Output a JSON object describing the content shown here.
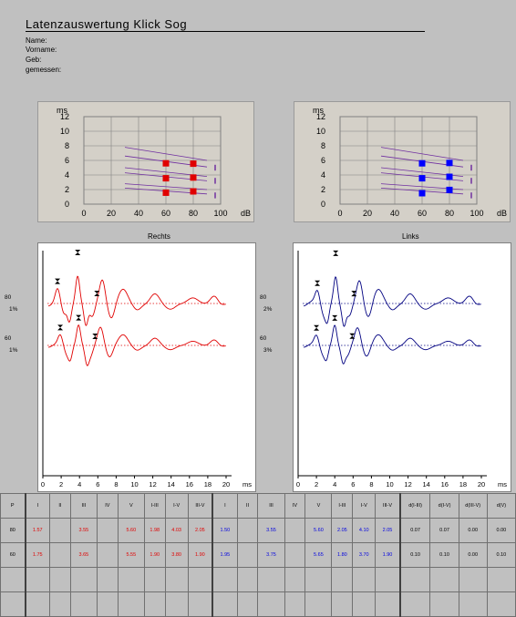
{
  "header": {
    "title": "Latenzauswertung Klick Sog",
    "fields": [
      "Name:",
      "Vorname:",
      "Geb:",
      "gemessen:"
    ]
  },
  "latency_plot": {
    "y_unit": "ms",
    "x_unit": "dB",
    "y_ticks": [
      "12",
      "10",
      "8",
      "6",
      "4",
      "2",
      "0"
    ],
    "x_ticks": [
      "0",
      "20",
      "40",
      "60",
      "80",
      "100"
    ]
  },
  "colors": {
    "right": "#e00000",
    "left": "#000080",
    "left_marker": "#0000ff",
    "norm": "#7030a0"
  },
  "waves": {
    "right_label": "Rechts",
    "left_label": "Links",
    "x_unit": "ms",
    "x_ticks": [
      "0",
      "2",
      "4",
      "6",
      "8",
      "10",
      "12",
      "14",
      "16",
      "18",
      "20"
    ],
    "right_levels": [
      {
        "level": "80",
        "pct": "1%"
      },
      {
        "level": "60",
        "pct": "1%"
      }
    ],
    "left_levels": [
      {
        "level": "80",
        "pct": "2%"
      },
      {
        "level": "60",
        "pct": "3%"
      }
    ]
  },
  "results": {
    "headers": [
      "P",
      "I",
      "II",
      "III",
      "IV",
      "V",
      "I-III",
      "I-V",
      "III-V",
      "I",
      "II",
      "III",
      "IV",
      "V",
      "I-III",
      "I-V",
      "III-V",
      "d(I-III)",
      "d(I-V)",
      "d(III-V)",
      "d(V)"
    ],
    "rows": [
      [
        "80",
        "1.57",
        "",
        "3.55",
        "",
        "5.60",
        "1.98",
        "4.03",
        "2.05",
        "1.50",
        "",
        "3.55",
        "",
        "5.60",
        "2.05",
        "4.10",
        "2.05",
        "0.07",
        "0.07",
        "0.00",
        "0.00"
      ],
      [
        "60",
        "1.75",
        "",
        "3.65",
        "",
        "5.55",
        "1.90",
        "3.80",
        "1.90",
        "1.95",
        "",
        "3.75",
        "",
        "5.65",
        "1.80",
        "3.70",
        "1.90",
        "0.10",
        "0.10",
        "0.00",
        "0.10"
      ],
      [
        "",
        "",
        "",
        "",
        "",
        "",
        "",
        "",
        "",
        "",
        "",
        "",
        "",
        "",
        "",
        "",
        "",
        "",
        "",
        "",
        ""
      ],
      [
        "",
        "",
        "",
        "",
        "",
        "",
        "",
        "",
        "",
        "",
        "",
        "",
        "",
        "",
        "",
        "",
        "",
        "",
        "",
        "",
        ""
      ]
    ]
  }
}
